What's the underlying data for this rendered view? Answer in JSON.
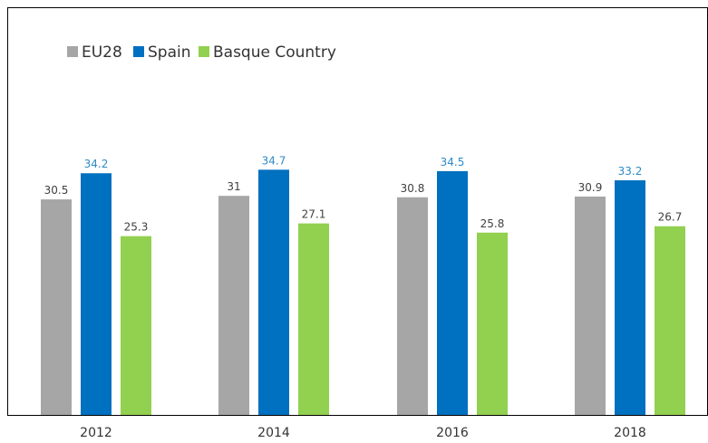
{
  "chart_data": {
    "type": "bar",
    "categories": [
      "2012",
      "2014",
      "2016",
      "2018"
    ],
    "series": [
      {
        "name": "EU28",
        "values": [
          30.5,
          31,
          30.8,
          30.9
        ],
        "labels": [
          "30.5",
          "31",
          "30.8",
          "30.9"
        ],
        "color": "#a6a6a6",
        "label_color": "#404040"
      },
      {
        "name": "Spain",
        "values": [
          34.2,
          34.7,
          34.5,
          33.2
        ],
        "labels": [
          "34.2",
          "34.7",
          "34.5",
          "33.2"
        ],
        "color": "#0070c0",
        "label_color": "#2e8bc8"
      },
      {
        "name": "Basque Country",
        "values": [
          25.3,
          27.1,
          25.8,
          26.7
        ],
        "labels": [
          "25.3",
          "27.1",
          "25.8",
          "26.7"
        ],
        "color": "#92d050",
        "label_color": "#404040"
      }
    ],
    "ylim": [
      0,
      50
    ],
    "grid": false,
    "legend_position": "top-left"
  }
}
